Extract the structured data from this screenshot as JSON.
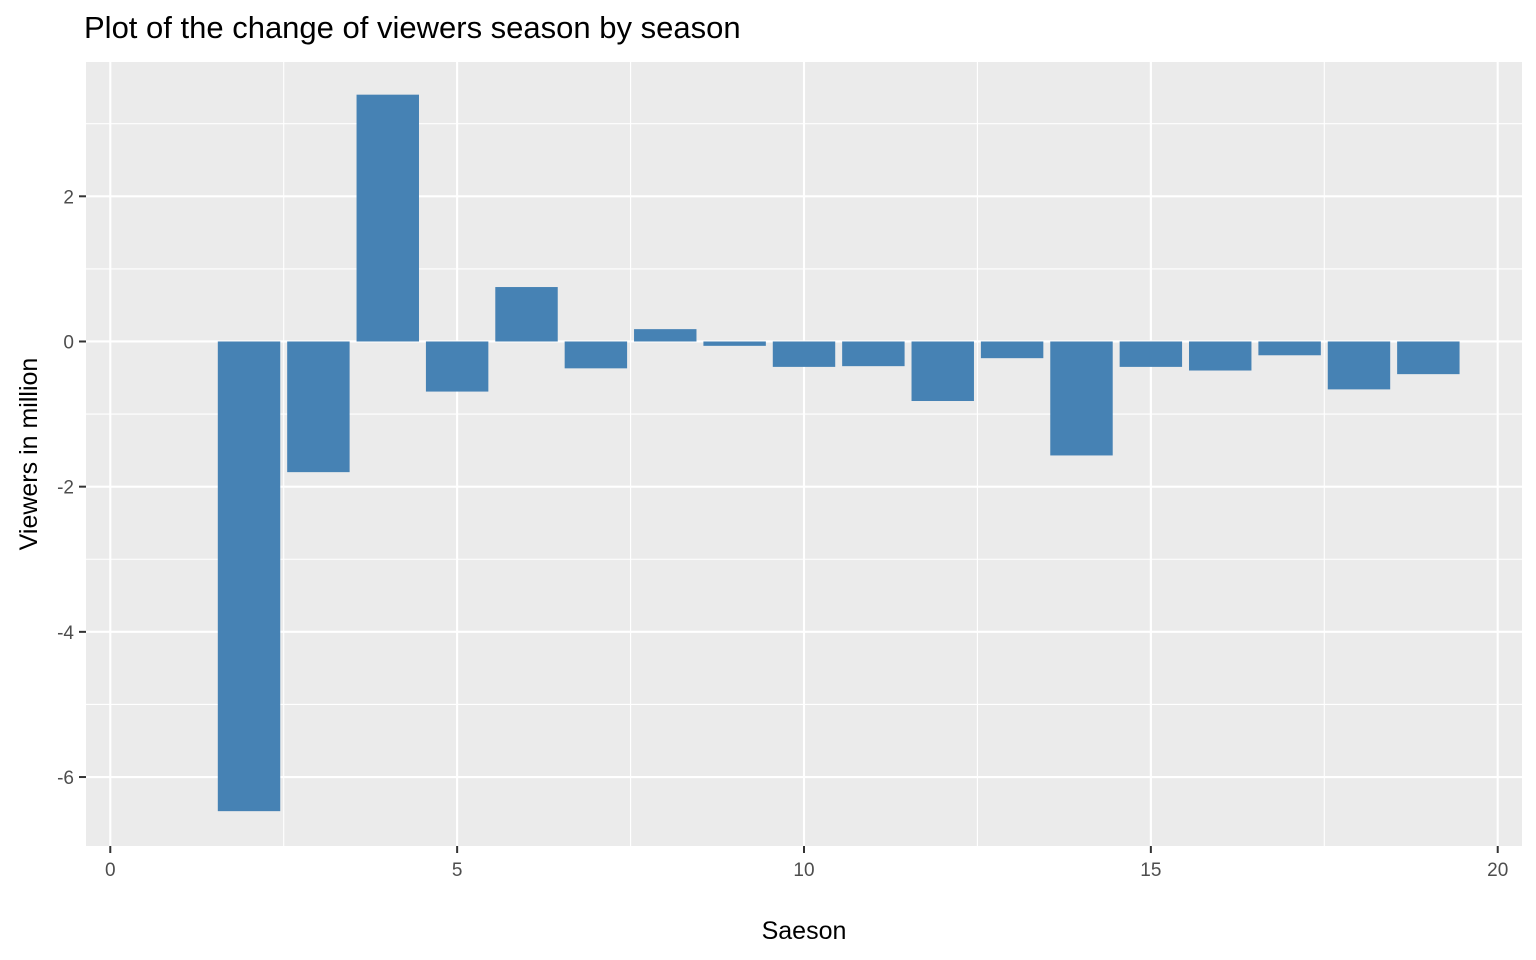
{
  "chart_data": {
    "type": "bar",
    "title": "Plot of the change of viewers season by season",
    "xlabel": "Saeson",
    "ylabel": "Viewers in million",
    "x": [
      2,
      3,
      4,
      5,
      6,
      7,
      8,
      9,
      10,
      11,
      12,
      13,
      14,
      15,
      16,
      17,
      18,
      19
    ],
    "values": [
      -6.47,
      -1.8,
      3.4,
      -0.69,
      0.75,
      -0.37,
      0.17,
      -0.06,
      -0.35,
      -0.34,
      -0.82,
      -0.23,
      -1.57,
      -0.35,
      -0.4,
      -0.19,
      -0.66,
      -0.45
    ],
    "xlim": [
      -0.35,
      20.35
    ],
    "ylim": [
      -6.95,
      3.85
    ],
    "x_ticks": [
      0,
      5,
      10,
      15,
      20
    ],
    "x_tick_labels": [
      "0",
      "5",
      "10",
      "15",
      "20"
    ],
    "y_ticks": [
      -6,
      -4,
      -2,
      0,
      2
    ],
    "y_tick_labels": [
      "-6",
      "-4",
      "-2",
      "0",
      "2"
    ],
    "grid": true,
    "legend": "none",
    "colors": {
      "bar": "#4682B4",
      "panel_background": "#EBEBEB",
      "grid": "#FFFFFF",
      "tick_text": "#4D4D4D",
      "axis_ticks": "#333333"
    }
  }
}
